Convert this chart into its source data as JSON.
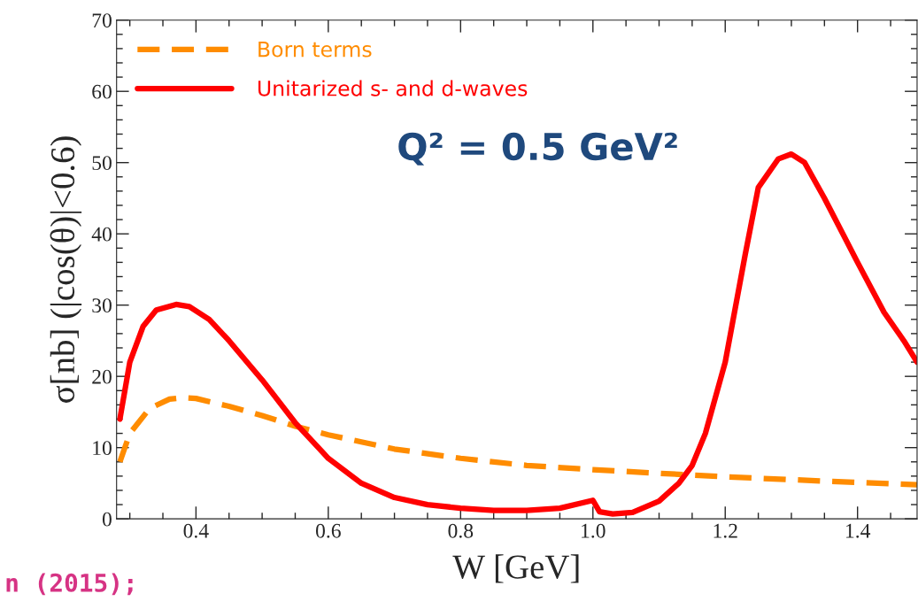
{
  "chart_data": {
    "type": "line",
    "xlabel": "W [GeV]",
    "ylabel": "σ[nb] (|cos(θ)|<0.6)",
    "xlim": [
      0.28,
      1.49
    ],
    "xticks": [
      {
        "value": 0.4,
        "label": "0.4"
      },
      {
        "value": 0.6,
        "label": "0.6"
      },
      {
        "value": 0.8,
        "label": "0.8"
      },
      {
        "value": 1.0,
        "label": "1.0"
      },
      {
        "value": 1.2,
        "label": "1.2"
      },
      {
        "value": 1.4,
        "label": "1.4"
      }
    ],
    "ylim": [
      0,
      70
    ],
    "yticks": [
      0,
      10,
      20,
      30,
      40,
      50,
      60,
      70
    ],
    "grid": false,
    "legend": "top left",
    "series": [
      {
        "name": "Born terms",
        "color": "#ff8c00",
        "line_style": "dashed",
        "x": [
          0.285,
          0.3,
          0.33,
          0.36,
          0.38,
          0.4,
          0.45,
          0.5,
          0.55,
          0.6,
          0.65,
          0.7,
          0.8,
          0.9,
          1.0,
          1.1,
          1.2,
          1.3,
          1.4,
          1.49
        ],
        "values": [
          8,
          12,
          15.5,
          16.8,
          17,
          16.9,
          15.8,
          14.5,
          13,
          11.8,
          10.8,
          9.8,
          8.5,
          7.5,
          6.9,
          6.4,
          5.9,
          5.5,
          5.1,
          4.8
        ]
      },
      {
        "name": "Unitarized s- and d-waves",
        "color": "#ff0000",
        "line_style": "solid",
        "x": [
          0.285,
          0.3,
          0.32,
          0.34,
          0.37,
          0.39,
          0.42,
          0.45,
          0.5,
          0.55,
          0.6,
          0.65,
          0.7,
          0.75,
          0.8,
          0.85,
          0.9,
          0.95,
          1.0,
          1.01,
          1.03,
          1.06,
          1.1,
          1.13,
          1.15,
          1.17,
          1.2,
          1.23,
          1.25,
          1.28,
          1.3,
          1.32,
          1.35,
          1.4,
          1.44,
          1.47,
          1.49
        ],
        "values": [
          14,
          22,
          27,
          29.3,
          30.1,
          29.8,
          28,
          25,
          19.5,
          13.5,
          8.5,
          5,
          3,
          2,
          1.5,
          1.2,
          1.2,
          1.5,
          2.6,
          1.0,
          0.7,
          0.9,
          2.5,
          5,
          7.5,
          12,
          22,
          37,
          46.5,
          50.5,
          51.2,
          50,
          45,
          36,
          29,
          25,
          22
        ]
      }
    ],
    "annotations": [
      "Q² = 0.5 GeV²",
      "n (2015);"
    ]
  }
}
